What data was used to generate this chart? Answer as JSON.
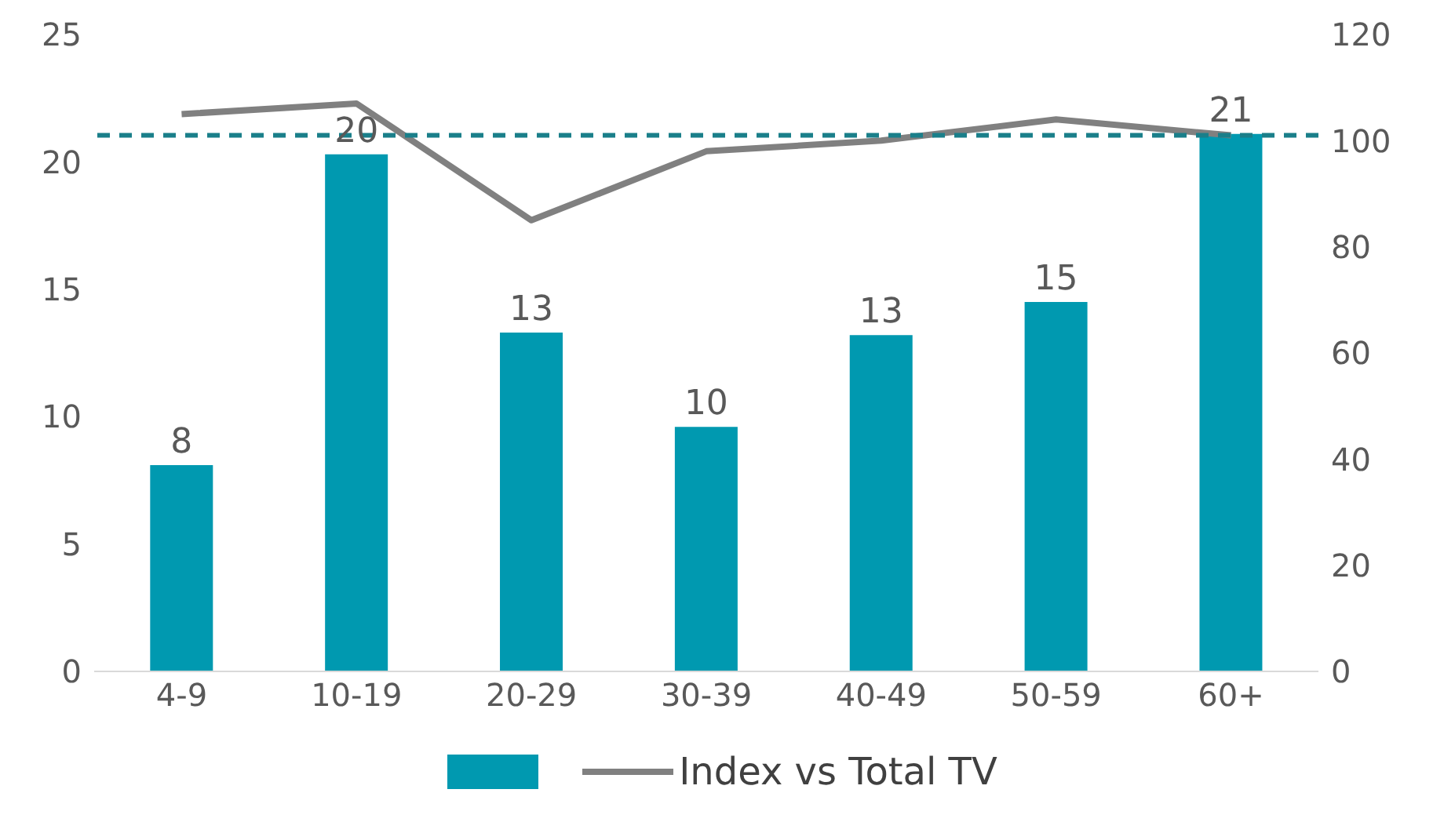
{
  "chart_data": {
    "type": "bar",
    "categories": [
      "4-9",
      "10-19",
      "20-29",
      "30-39",
      "40-49",
      "50-59",
      "60+"
    ],
    "series": [
      {
        "color": "#0099b0",
        "values": [
          8.1,
          20.3,
          13.3,
          9.6,
          13.2,
          14.5,
          21.1
        ],
        "value_labels": [
          "8",
          "20",
          "13",
          "10",
          "13",
          "15",
          "21"
        ]
      },
      {
        "type": "line",
        "name": "Index vs Total TV",
        "color": "#808080",
        "axis": "y2",
        "values": [
          105,
          107,
          85,
          98,
          100,
          104,
          101
        ]
      }
    ],
    "ylim": [
      0,
      25
    ],
    "yticks": [
      0,
      5,
      10,
      15,
      20,
      25
    ],
    "y2lim": [
      0,
      120
    ],
    "y2ticks": [
      0,
      20,
      40,
      60,
      80,
      100,
      120
    ],
    "ref_lines": [
      {
        "axis": "y2",
        "value": 101,
        "color": "#1a7f8a",
        "line_style": "dashed"
      }
    ],
    "grid": false,
    "legend": "bottom",
    "marker": "none"
  }
}
